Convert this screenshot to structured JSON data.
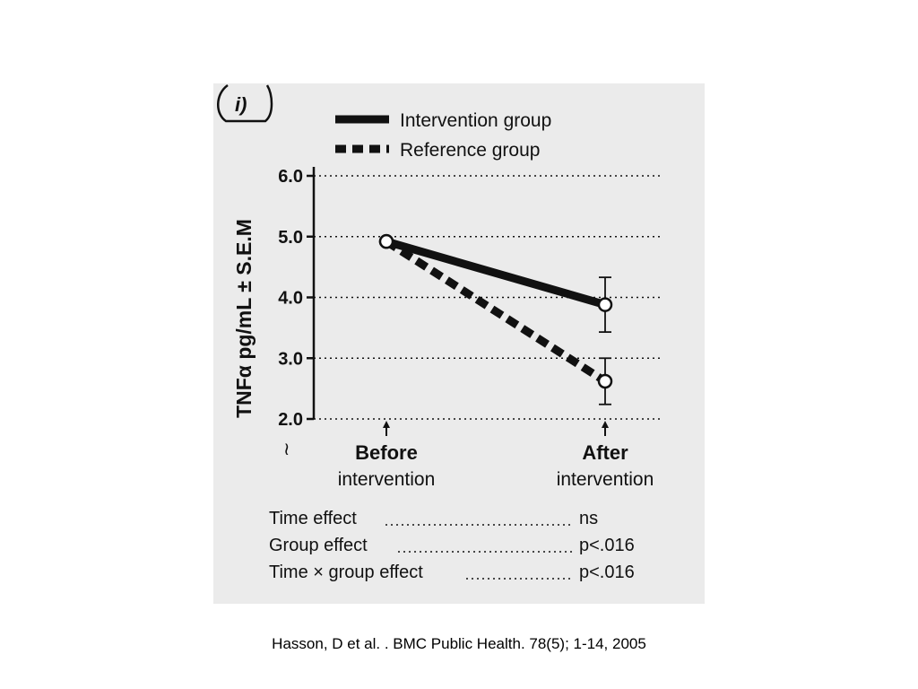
{
  "panel_label": "i)",
  "chart_data": {
    "type": "line",
    "ylabel": "TNFα pg/mL ± S.E.M",
    "ylim": [
      2.0,
      6.0
    ],
    "yticks": [
      "6.0",
      "5.0",
      "4.0",
      "3.0",
      "2.0"
    ],
    "categories": [
      "Before intervention",
      "After intervention"
    ],
    "category_labels": [
      {
        "line1": "Before",
        "line2": "intervention"
      },
      {
        "line1": "After",
        "line2": "intervention"
      }
    ],
    "grid": true,
    "legend_position": "top",
    "series": [
      {
        "name": "Intervention group",
        "style": "solid",
        "values": [
          4.92,
          3.88
        ],
        "error": [
          0.0,
          0.45
        ]
      },
      {
        "name": "Reference group",
        "style": "dashed",
        "values": [
          4.92,
          2.62
        ],
        "error": [
          0.0,
          0.38
        ]
      }
    ]
  },
  "stats": [
    {
      "label": "Time effect",
      "value": "ns"
    },
    {
      "label": "Group effect",
      "value": "p<.016"
    },
    {
      "label": "Time × group effect",
      "value": "p<.016"
    }
  ],
  "axis_break_symbol": "≀",
  "caption": "Hasson, D et al. . BMC Public Health. 78(5); 1-14, 2005",
  "colors": {
    "ink": "#111111",
    "scan_background": "#ebebeb",
    "page": "#ffffff"
  }
}
